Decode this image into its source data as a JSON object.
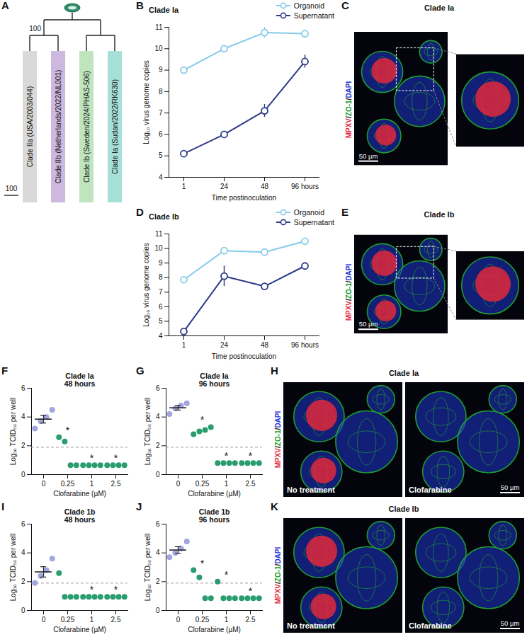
{
  "chart_data": [
    {
      "panel": "A",
      "type": "tree",
      "leaves": [
        {
          "name": "Clade IIa (USA/2003/044)",
          "color": "#d9d9d9"
        },
        {
          "name": "Clade IIb (Netherlands/2022/NL001)",
          "color": "#cdb9e0"
        },
        {
          "name": "Clade Ib (Sweden/2024/PHAS-506)",
          "color": "#bfe5bf"
        },
        {
          "name": "Clade Ia (Sudan/2022/RK630)",
          "color": "#a6e0d8"
        }
      ],
      "clades": [
        {
          "members": [
            0,
            1
          ],
          "support": 100
        },
        {
          "members": [
            2,
            3
          ],
          "support": null
        }
      ],
      "scale_bar": 100
    },
    {
      "panel": "B",
      "type": "line",
      "title": "Clade Ia",
      "categories": [
        "1",
        "24",
        "48",
        "96 hours"
      ],
      "x_label": "Time postinoculation",
      "y_label": "Log₁₀ virus genome copies",
      "ylim": [
        4,
        11
      ],
      "yticks": [
        4,
        5,
        6,
        7,
        8,
        9,
        10,
        11
      ],
      "legend": "top",
      "marker": "circle",
      "series": [
        {
          "name": "Organoid",
          "color": "#86cbea",
          "values": [
            9.0,
            10.0,
            10.75,
            10.7
          ],
          "errors": [
            null,
            null,
            0.25,
            null
          ]
        },
        {
          "name": "Supernatant",
          "color": "#2e3a87",
          "values": [
            5.1,
            6.0,
            7.1,
            9.4
          ],
          "errors": [
            null,
            null,
            0.3,
            0.3
          ]
        }
      ]
    },
    {
      "panel": "D",
      "type": "line",
      "title": "Clade Ib",
      "categories": [
        "1",
        "24",
        "48",
        "96 hours"
      ],
      "x_label": "Time postinoculation",
      "y_label": "Log₁₀ virus genome copies",
      "ylim": [
        4,
        11
      ],
      "yticks": [
        4,
        5,
        6,
        7,
        8,
        9,
        10,
        11
      ],
      "legend": "top",
      "marker": "circle",
      "series": [
        {
          "name": "Organoid",
          "color": "#86cbea",
          "values": [
            7.85,
            9.85,
            9.75,
            10.5
          ],
          "errors": [
            null,
            null,
            null,
            null
          ]
        },
        {
          "name": "Supernatant",
          "color": "#2e3a87",
          "values": [
            4.3,
            8.1,
            7.4,
            8.8
          ],
          "errors": [
            null,
            0.7,
            null,
            null
          ]
        }
      ]
    },
    {
      "panel": "F",
      "type": "scatter",
      "title": "Clade Ia",
      "subtitle": "48 hours",
      "categories": [
        "0",
        "0.25",
        "1",
        "2.5"
      ],
      "x_label": "Clofarabine (µM)",
      "y_label": "Log₁₀ TCID₅₀ per well",
      "ylim": [
        0,
        6
      ],
      "yticks": [
        0,
        2,
        4,
        6
      ],
      "colors": [
        "#a3a6de",
        "#2a9d6f",
        "#2a9d6f",
        "#2a9d6f"
      ],
      "values": [
        [
          3.2,
          3.7,
          4.0,
          4.5
        ],
        [
          2.6,
          2.3,
          0.65,
          0.65
        ],
        [
          0.65,
          0.65,
          0.65,
          0.65
        ],
        [
          0.65,
          0.65,
          0.65,
          0.65
        ]
      ],
      "mean": [
        3.85,
        null,
        null,
        null
      ],
      "sem": [
        0.27,
        null,
        null,
        null
      ],
      "detection_limit": 1.9,
      "significance": [
        null,
        "*",
        "*",
        "*"
      ]
    },
    {
      "panel": "G",
      "type": "scatter",
      "title": "Clade Ia",
      "subtitle": "96 hours",
      "categories": [
        "0",
        "0.25",
        "1",
        "2.5"
      ],
      "x_label": "Clofarabine (µM)",
      "y_label": "Log₁₀ TCID₅₀ per well",
      "ylim": [
        0,
        6
      ],
      "yticks": [
        0,
        2,
        4,
        6
      ],
      "colors": [
        "#a3a6de",
        "#2a9d6f",
        "#2a9d6f",
        "#2a9d6f"
      ],
      "values": [
        [
          4.2,
          4.6,
          4.8,
          4.95
        ],
        [
          2.8,
          3.0,
          3.1,
          3.3
        ],
        [
          0.8,
          0.8,
          0.8,
          0.8
        ],
        [
          0.8,
          0.8,
          0.8,
          0.8
        ]
      ],
      "mean": [
        4.64,
        null,
        null,
        null
      ],
      "sem": [
        0.16,
        null,
        null,
        null
      ],
      "detection_limit": 1.9,
      "significance": [
        null,
        "*",
        "*",
        "*"
      ]
    },
    {
      "panel": "I",
      "type": "scatter",
      "title": "Clade 1b",
      "subtitle": "48 hours",
      "categories": [
        "0",
        "0.25",
        "1",
        "2.5"
      ],
      "x_label": "Clofarabine (µM)",
      "y_label": "Log₁₀ TCID₅₀ per well",
      "ylim": [
        0,
        6
      ],
      "yticks": [
        0,
        2,
        4,
        6
      ],
      "colors": [
        "#a3a6de",
        "#2a9d6f",
        "#2a9d6f",
        "#2a9d6f"
      ],
      "values": [
        [
          1.9,
          2.4,
          2.8,
          3.6
        ],
        [
          2.6,
          0.95,
          0.95,
          0.95
        ],
        [
          0.95,
          0.95,
          0.95,
          0.95
        ],
        [
          0.95,
          0.95,
          0.95,
          0.95
        ]
      ],
      "mean": [
        2.68,
        null,
        null,
        null
      ],
      "sem": [
        0.36,
        null,
        null,
        null
      ],
      "detection_limit": 1.9,
      "significance": [
        null,
        null,
        "*",
        "*"
      ]
    },
    {
      "panel": "J",
      "type": "scatter",
      "title": "Clade 1b",
      "subtitle": "96 hours",
      "categories": [
        "0",
        "0.25",
        "1",
        "2.5"
      ],
      "x_label": "Clofarabine (µM)",
      "y_label": "Log₁₀ TCID₅₀ per well",
      "ylim": [
        0,
        6
      ],
      "yticks": [
        0,
        2,
        4,
        6
      ],
      "colors": [
        "#a3a6de",
        "#2a9d6f",
        "#2a9d6f",
        "#2a9d6f"
      ],
      "values": [
        [
          3.7,
          4.0,
          4.3,
          4.8
        ],
        [
          2.8,
          2.3,
          0.85,
          0.85
        ],
        [
          2.0,
          0.85,
          0.85,
          0.85
        ],
        [
          0.85,
          0.85,
          0.85,
          0.85
        ]
      ],
      "mean": [
        4.2,
        null,
        null,
        null
      ],
      "sem": [
        0.23,
        null,
        null,
        null
      ],
      "detection_limit": 1.9,
      "significance": [
        null,
        "*",
        "*",
        "*"
      ]
    }
  ],
  "images": [
    {
      "panel": "C",
      "title": "Clade Ia",
      "channels": [
        {
          "text": "MPXV",
          "color": "#e0283c"
        },
        {
          "text": "/",
          "color": "#111111"
        },
        {
          "text": "ZO-1",
          "color": "#1e9c32"
        },
        {
          "text": "/",
          "color": "#111111"
        },
        {
          "text": "DAPI",
          "color": "#1f36d0"
        }
      ],
      "scale_bar": "50 µm",
      "views": [
        {
          "label": null
        },
        {
          "label": null
        }
      ]
    },
    {
      "panel": "E",
      "title": "Clade Ib",
      "channels": [
        {
          "text": "MPXV",
          "color": "#e0283c"
        },
        {
          "text": "/",
          "color": "#111111"
        },
        {
          "text": "ZO-1",
          "color": "#1e9c32"
        },
        {
          "text": "/",
          "color": "#111111"
        },
        {
          "text": "DAPI",
          "color": "#1f36d0"
        }
      ],
      "scale_bar": "50 µm",
      "views": [
        {
          "label": null
        },
        {
          "label": null
        }
      ]
    },
    {
      "panel": "H",
      "title": "Clade Ia",
      "channels": [
        {
          "text": "MPXV",
          "color": "#e0283c"
        },
        {
          "text": "/",
          "color": "#111111"
        },
        {
          "text": "ZO-1",
          "color": "#1e9c32"
        },
        {
          "text": "/",
          "color": "#111111"
        },
        {
          "text": "DAPI",
          "color": "#1f36d0"
        }
      ],
      "scale_bar": "50 µm",
      "views": [
        {
          "label": "No treatment"
        },
        {
          "label": "Clofarabine"
        }
      ]
    },
    {
      "panel": "K",
      "title": "Clade Ib",
      "channels": [
        {
          "text": "MPXV",
          "color": "#e0283c"
        },
        {
          "text": "/",
          "color": "#111111"
        },
        {
          "text": "ZO-1",
          "color": "#1e9c32"
        },
        {
          "text": "/",
          "color": "#111111"
        },
        {
          "text": "DAPI",
          "color": "#1f36d0"
        }
      ],
      "scale_bar": "50 µm",
      "views": [
        {
          "label": "No treatment"
        },
        {
          "label": "Clofarabine"
        }
      ]
    }
  ]
}
